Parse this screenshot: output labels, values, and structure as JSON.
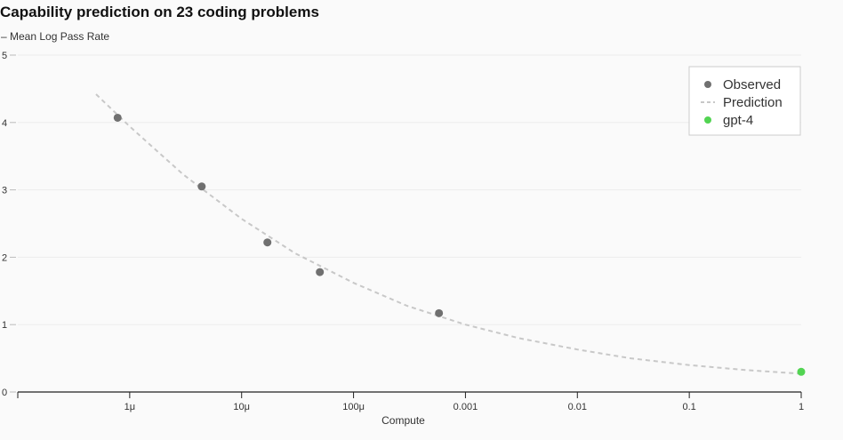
{
  "chart_data": {
    "type": "scatter",
    "title": "Capability prediction on 23 coding problems",
    "ylabel": "– Mean Log Pass Rate",
    "xlabel": "Compute",
    "x_scale": "log",
    "xlim": [
      1e-07,
      1
    ],
    "ylim": [
      0,
      5
    ],
    "x_ticks": [
      1e-06,
      1e-05,
      0.0001,
      0.001,
      0.01,
      0.1,
      1
    ],
    "x_tick_labels": [
      "1μ",
      "10μ",
      "100μ",
      "0.001",
      "0.01",
      "0.1",
      "1"
    ],
    "y_ticks": [
      0,
      1,
      2,
      3,
      4,
      5
    ],
    "y_tick_labels": [
      "0",
      "1",
      "2",
      "3",
      "4",
      "5"
    ],
    "grid": true,
    "legend_position": "top-right",
    "series": [
      {
        "name": "Observed",
        "kind": "points",
        "color": "#707070",
        "x": [
          7.8e-07,
          4.4e-06,
          1.7e-05,
          5e-05,
          0.00058
        ],
        "y": [
          4.07,
          3.05,
          2.22,
          1.78,
          1.17
        ]
      },
      {
        "name": "Prediction",
        "kind": "dashed-line",
        "color": "#c8c8c8",
        "x": [
          5e-07,
          1e-06,
          3e-06,
          1e-05,
          3e-05,
          0.0001,
          0.0003,
          0.001,
          0.003,
          0.01,
          0.03,
          0.1,
          0.3,
          1
        ],
        "y": [
          4.42,
          3.94,
          3.23,
          2.57,
          2.06,
          1.62,
          1.28,
          1.0,
          0.8,
          0.63,
          0.5,
          0.4,
          0.33,
          0.27
        ]
      },
      {
        "name": "gpt-4",
        "kind": "points",
        "color": "#52d452",
        "x": [
          1
        ],
        "y": [
          0.3
        ]
      }
    ]
  }
}
